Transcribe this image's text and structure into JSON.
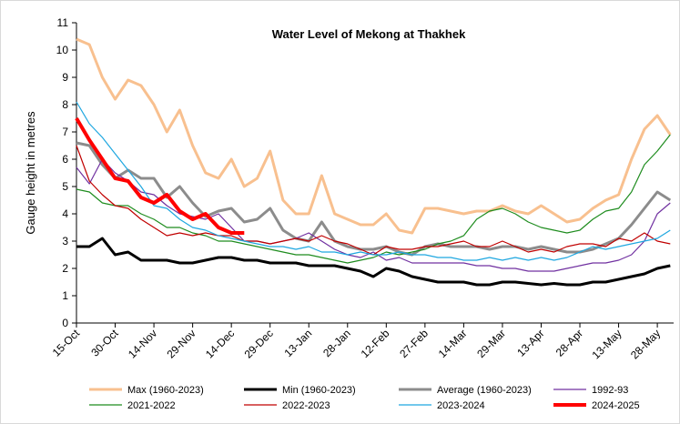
{
  "chart_data": {
    "type": "line",
    "title": "Water Level of Mekong at Thakhek",
    "y_label": "Gauge height in metres",
    "categories": [
      "15-Oct",
      null,
      null,
      "30-Oct",
      null,
      null,
      "14-Nov",
      null,
      null,
      "29-Nov",
      null,
      null,
      "14-Dec",
      null,
      null,
      "29-Dec",
      null,
      null,
      "13-Jan",
      null,
      null,
      "28-Jan",
      null,
      null,
      "12-Feb",
      null,
      null,
      "27-Feb",
      null,
      null,
      "14-Mar",
      null,
      null,
      "29-Mar",
      null,
      null,
      "13-Apr",
      null,
      null,
      "28-Apr",
      null,
      null,
      "13-May",
      null,
      null,
      "28-May",
      null
    ],
    "ylim": [
      0,
      11
    ],
    "yticks": [
      0,
      1,
      2,
      3,
      4,
      5,
      6,
      7,
      8,
      9,
      10,
      11
    ],
    "grid": false,
    "legend": "bottom",
    "series": [
      {
        "name": "Max (1960-2023)",
        "color": "#f8c08f",
        "width": 3,
        "values": [
          10.4,
          10.2,
          9.0,
          8.2,
          8.9,
          8.7,
          8.0,
          7.0,
          7.8,
          6.5,
          5.5,
          5.3,
          6.0,
          5.0,
          5.3,
          6.3,
          4.5,
          4.0,
          4.0,
          5.4,
          4.0,
          3.8,
          3.6,
          3.6,
          4.0,
          3.4,
          3.3,
          4.2,
          4.2,
          4.1,
          4.0,
          4.1,
          4.1,
          4.3,
          4.1,
          4.0,
          4.3,
          4.0,
          3.7,
          3.8,
          4.2,
          4.5,
          4.7,
          6.0,
          7.1,
          7.6,
          6.9
        ]
      },
      {
        "name": "Min (1960-2023)",
        "color": "#000000",
        "width": 3,
        "values": [
          2.8,
          2.8,
          3.1,
          2.5,
          2.6,
          2.3,
          2.3,
          2.3,
          2.2,
          2.2,
          2.3,
          2.4,
          2.4,
          2.3,
          2.3,
          2.2,
          2.2,
          2.2,
          2.1,
          2.1,
          2.1,
          2.0,
          1.9,
          1.7,
          2.0,
          1.9,
          1.7,
          1.6,
          1.5,
          1.5,
          1.5,
          1.4,
          1.4,
          1.5,
          1.5,
          1.45,
          1.4,
          1.45,
          1.4,
          1.4,
          1.5,
          1.5,
          1.6,
          1.7,
          1.8,
          2.0,
          2.1
        ]
      },
      {
        "name": "Average (1960-2023)",
        "color": "#8c8c8c",
        "width": 3,
        "values": [
          6.6,
          6.5,
          5.8,
          5.3,
          5.6,
          5.3,
          5.3,
          4.6,
          5.0,
          4.4,
          3.9,
          4.1,
          4.2,
          3.7,
          3.8,
          4.2,
          3.4,
          3.1,
          3.0,
          3.7,
          3.0,
          2.8,
          2.7,
          2.7,
          2.8,
          2.6,
          2.5,
          2.8,
          2.9,
          2.8,
          2.8,
          2.8,
          2.7,
          2.8,
          2.8,
          2.7,
          2.8,
          2.7,
          2.6,
          2.6,
          2.7,
          2.9,
          3.1,
          3.6,
          4.2,
          4.8,
          4.5
        ]
      },
      {
        "name": "1992-93",
        "color": "#7030a0",
        "width": 1.2,
        "values": [
          5.7,
          5.1,
          6.0,
          5.5,
          5.2,
          4.8,
          4.7,
          4.3,
          4.0,
          3.9,
          3.8,
          4.0,
          3.5,
          3.0,
          3.0,
          2.9,
          3.0,
          3.1,
          3.3,
          3.0,
          2.7,
          2.5,
          2.4,
          2.6,
          2.3,
          2.4,
          2.2,
          2.2,
          2.2,
          2.2,
          2.2,
          2.1,
          2.1,
          2.0,
          2.0,
          1.9,
          1.9,
          1.9,
          2.0,
          2.1,
          2.2,
          2.2,
          2.3,
          2.5,
          3.0,
          4.0,
          4.4
        ]
      },
      {
        "name": "2021-2022",
        "color": "#1e8c1e",
        "width": 1.2,
        "values": [
          4.9,
          4.8,
          4.4,
          4.3,
          4.3,
          4.0,
          3.8,
          3.5,
          3.5,
          3.3,
          3.2,
          3.0,
          3.0,
          2.9,
          2.8,
          2.7,
          2.6,
          2.5,
          2.5,
          2.4,
          2.3,
          2.2,
          2.3,
          2.4,
          2.6,
          2.5,
          2.6,
          2.7,
          2.9,
          3.0,
          3.2,
          3.8,
          4.1,
          4.2,
          4.0,
          3.7,
          3.5,
          3.4,
          3.3,
          3.4,
          3.8,
          4.1,
          4.2,
          4.8,
          5.8,
          6.3,
          6.9
        ]
      },
      {
        "name": "2022-2023",
        "color": "#c00000",
        "width": 1.2,
        "values": [
          6.5,
          5.2,
          4.7,
          4.3,
          4.2,
          3.8,
          3.5,
          3.2,
          3.3,
          3.2,
          3.3,
          3.2,
          3.2,
          3.0,
          3.0,
          2.9,
          3.0,
          3.1,
          3.0,
          3.2,
          3.0,
          2.9,
          2.7,
          2.5,
          2.8,
          2.7,
          2.7,
          2.8,
          2.8,
          2.9,
          3.0,
          2.8,
          2.8,
          3.0,
          2.8,
          2.6,
          2.7,
          2.6,
          2.8,
          2.9,
          2.9,
          2.8,
          3.1,
          3.0,
          3.3,
          3.0,
          2.9
        ]
      },
      {
        "name": "2023-2024",
        "color": "#1fa7e0",
        "width": 1.2,
        "values": [
          8.1,
          7.3,
          6.8,
          6.2,
          5.6,
          5.0,
          4.3,
          4.2,
          3.8,
          3.5,
          3.4,
          3.2,
          3.1,
          3.0,
          2.9,
          2.8,
          2.8,
          2.7,
          2.8,
          2.6,
          2.6,
          2.5,
          2.6,
          2.5,
          2.5,
          2.6,
          2.5,
          2.5,
          2.4,
          2.4,
          2.3,
          2.3,
          2.4,
          2.3,
          2.4,
          2.3,
          2.4,
          2.3,
          2.4,
          2.6,
          2.8,
          2.7,
          2.8,
          2.9,
          3.0,
          3.1,
          3.4
        ]
      },
      {
        "name": "2024-2025",
        "color": "#ff0000",
        "width": 4,
        "values": [
          7.5,
          6.7,
          6.0,
          5.3,
          5.2,
          4.6,
          4.4,
          4.7,
          4.1,
          3.8,
          4.0,
          3.5,
          3.3,
          3.3,
          null,
          null,
          null,
          null,
          null,
          null,
          null,
          null,
          null,
          null,
          null,
          null,
          null,
          null,
          null,
          null,
          null,
          null,
          null,
          null,
          null,
          null,
          null,
          null,
          null,
          null,
          null,
          null,
          null,
          null,
          null,
          null,
          null
        ]
      }
    ]
  }
}
